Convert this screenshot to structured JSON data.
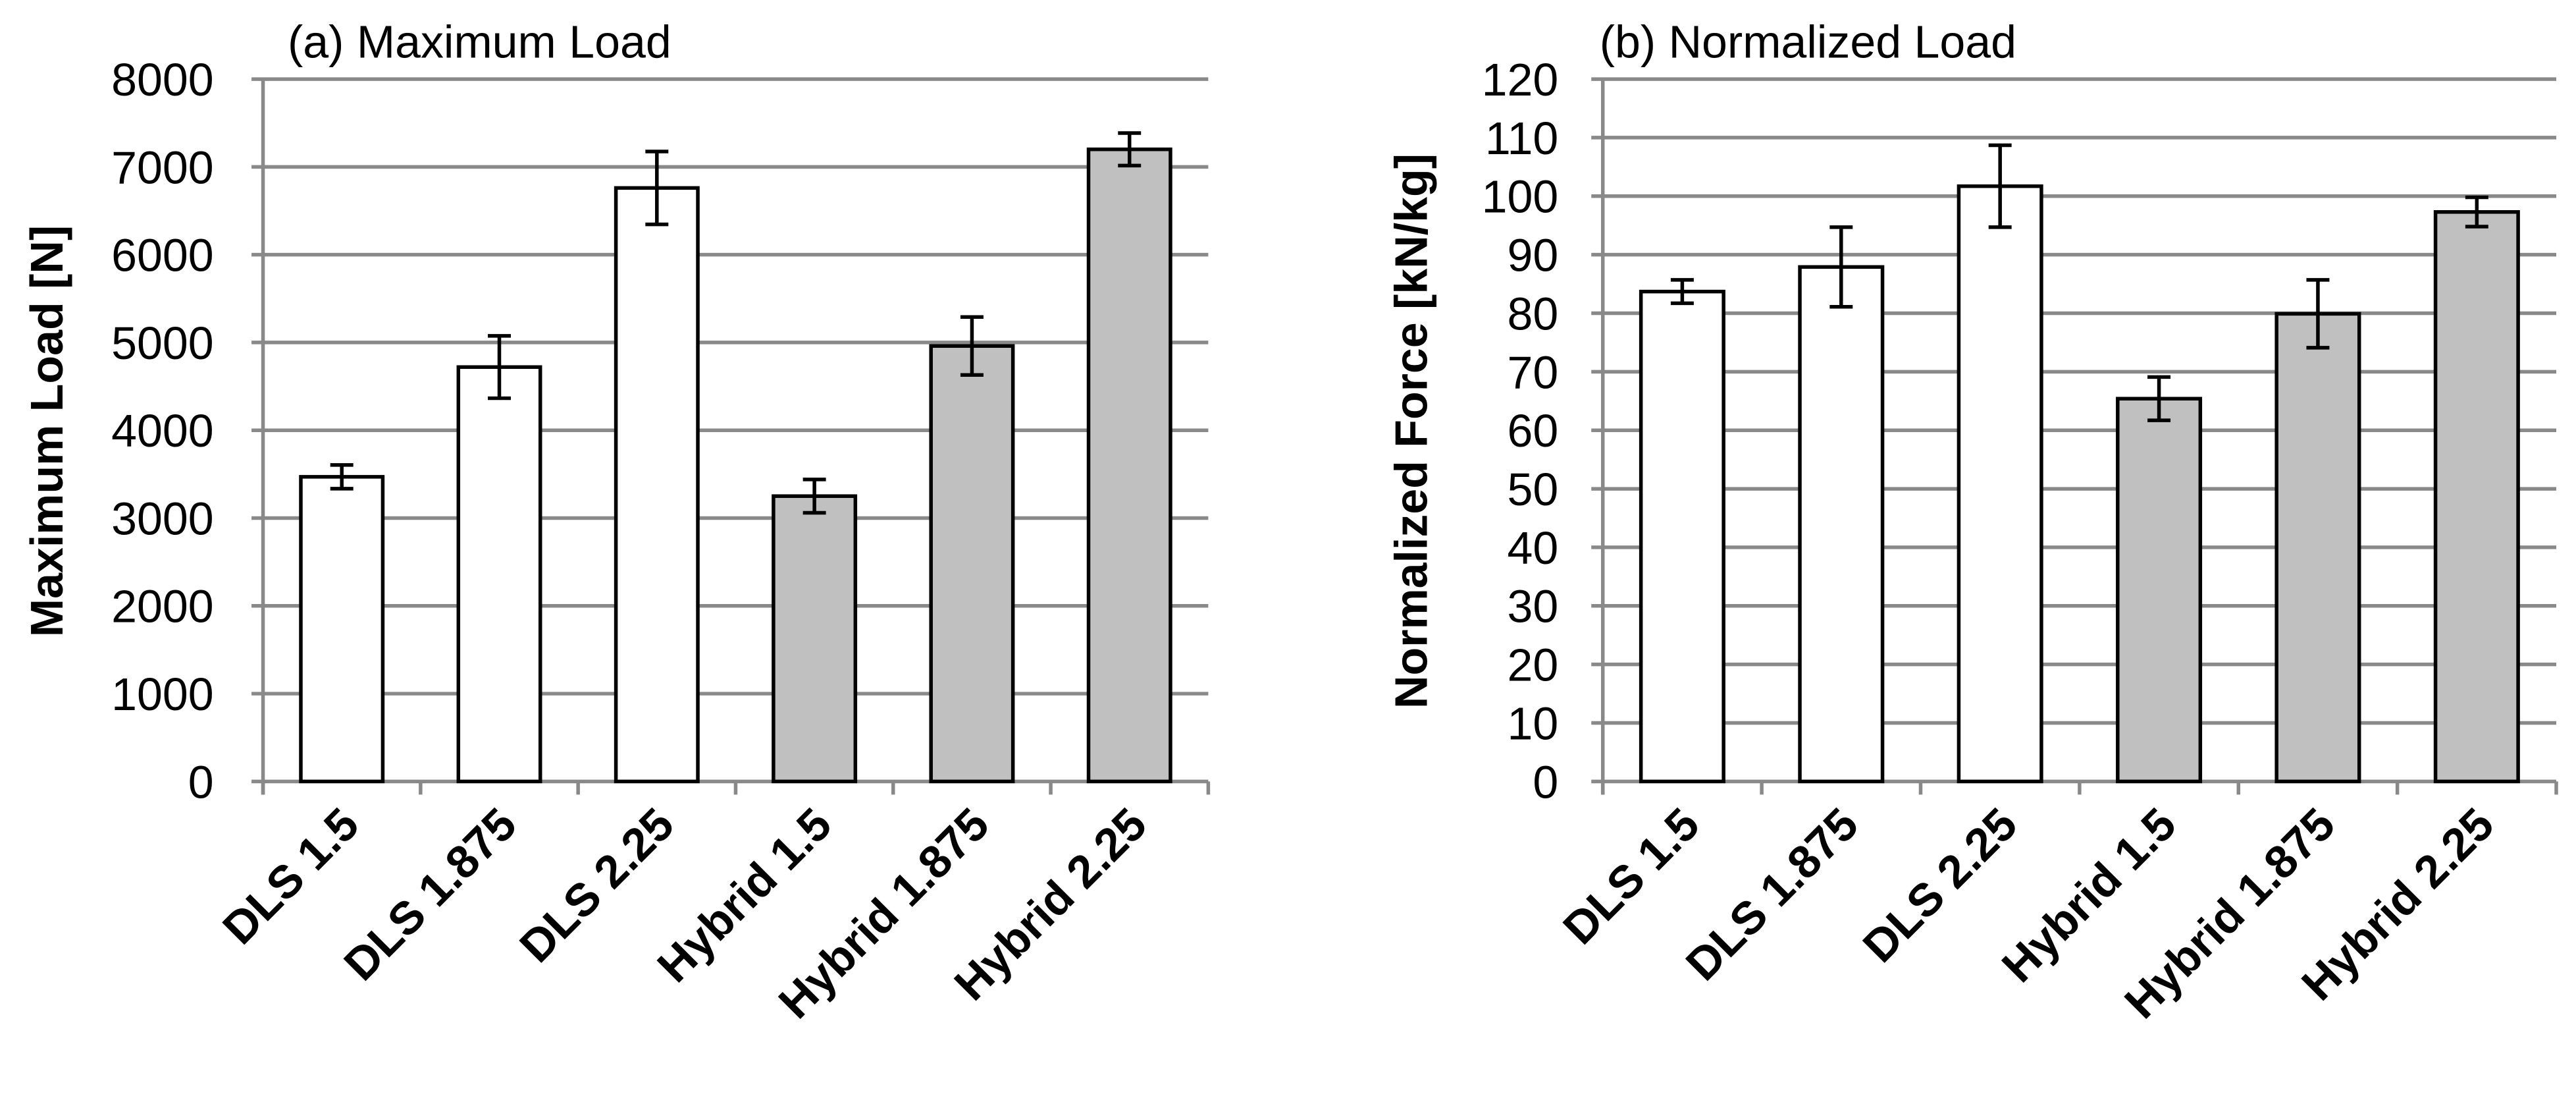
{
  "chart_data": [
    {
      "type": "bar",
      "title": "(a) Maximum Load",
      "xlabel": "",
      "ylabel": "Maximum Load [N]",
      "ylim": [
        0,
        8000
      ],
      "ytick_step": 1000,
      "yticks": [
        "0",
        "1000",
        "2000",
        "3000",
        "4000",
        "5000",
        "6000",
        "7000",
        "8000"
      ],
      "grid": true,
      "categories": [
        "DLS 1.5",
        "DLS 1.875",
        "DLS 2.25",
        "Hybrid 1.5",
        "Hybrid 1.875",
        "Hybrid 2.25"
      ],
      "values": [
        3470,
        4720,
        6760,
        3250,
        4960,
        7200
      ],
      "errors": [
        135,
        355,
        415,
        190,
        330,
        185
      ],
      "fill_colors": [
        "#ffffff",
        "#ffffff",
        "#ffffff",
        "#c0c0c0",
        "#c0c0c0",
        "#c0c0c0"
      ]
    },
    {
      "type": "bar",
      "title": "(b) Normalized Load",
      "xlabel": "",
      "ylabel": "Normalized Force [kN/kg]",
      "ylim": [
        0,
        120
      ],
      "ytick_step": 10,
      "yticks": [
        "0",
        "10",
        "20",
        "30",
        "40",
        "50",
        "60",
        "70",
        "80",
        "90",
        "100",
        "110",
        "120"
      ],
      "grid": true,
      "categories": [
        "DLS 1.5",
        "DLS 1.875",
        "DLS 2.25",
        "Hybrid 1.5",
        "Hybrid 1.875",
        "Hybrid 2.25"
      ],
      "values": [
        83.7,
        87.9,
        101.7,
        65.4,
        79.9,
        97.3
      ],
      "errors": [
        2.0,
        6.8,
        7.0,
        3.7,
        5.8,
        2.5
      ],
      "fill_colors": [
        "#ffffff",
        "#ffffff",
        "#ffffff",
        "#c0c0c0",
        "#c0c0c0",
        "#c0c0c0"
      ]
    }
  ],
  "colors": {
    "grid": "#898989",
    "bar_stroke": "#000000",
    "text": "#000000"
  }
}
